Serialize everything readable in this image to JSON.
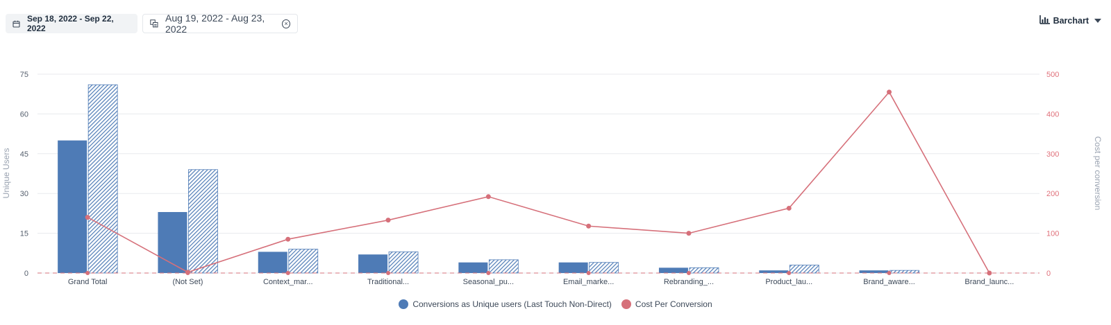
{
  "toolbar": {
    "primary_range": "Sep 18, 2022 - Sep 22, 2022",
    "compare_range": "Aug 19, 2022 - Aug 23, 2022",
    "chart_type_label": "Barchart"
  },
  "colors": {
    "bar_primary": "#4e7bb6",
    "bar_compare": "#4e7bb6",
    "line": "#d6707a",
    "grid": "#e8eaed",
    "axis_text": "#555f6d",
    "right_axis_text": "#e0707a"
  },
  "legend": [
    {
      "label": "Conversions as Unique users (Last Touch Non-Direct)",
      "color": "#4e7bb6"
    },
    {
      "label": "Cost Per Conversion",
      "color": "#d6707a"
    }
  ],
  "chart_data": {
    "type": "bar",
    "categories": [
      "Grand Total",
      "(Not Set)",
      "Context_mar...",
      "Traditional...",
      "Seasonal_pu...",
      "Email_marke...",
      "Rebranding_...",
      "Product_lau...",
      "Brand_aware...",
      "Brand_launc..."
    ],
    "series": [
      {
        "values": [
          50,
          23,
          8,
          7,
          4,
          4,
          2,
          1,
          1,
          0
        ],
        "axis": "left",
        "style": "solid"
      },
      {
        "values": [
          71,
          39,
          9,
          8,
          5,
          4,
          2,
          3,
          1,
          0
        ],
        "axis": "left",
        "style": "hatched"
      },
      {
        "type": "line",
        "values": [
          140,
          2,
          85,
          133,
          192,
          118,
          100,
          163,
          455,
          0
        ],
        "axis": "right"
      },
      {
        "type": "line",
        "values": [
          0,
          0,
          0,
          0,
          0,
          0,
          0,
          0,
          0,
          0
        ],
        "axis": "right",
        "style": "dashed"
      }
    ],
    "ylabel": "Unique Users",
    "y2label": "Cost per conversion",
    "ylim": [
      0,
      75
    ],
    "yticks": [
      0,
      15,
      30,
      45,
      60,
      75
    ],
    "y2lim": [
      0,
      500
    ],
    "y2ticks": [
      0,
      100,
      200,
      300,
      400,
      500
    ],
    "grid": true,
    "legend_position": "bottom-center"
  }
}
